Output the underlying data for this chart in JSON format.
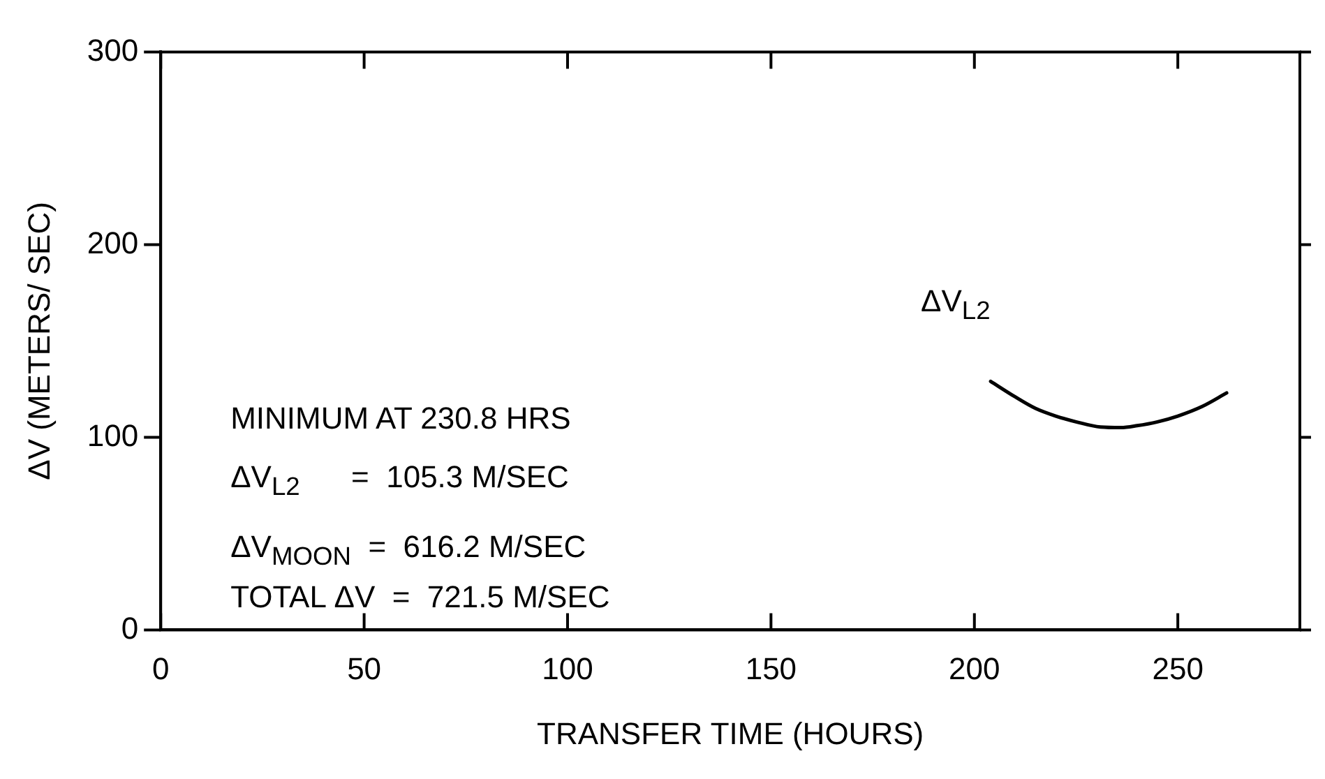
{
  "chart_data": {
    "type": "line",
    "xlabel": "TRANSFER TIME (HOURS)",
    "ylabel": "ΔV (METERS/ SEC)",
    "xlim": [
      0,
      280
    ],
    "xticks": [
      0,
      50,
      100,
      150,
      200,
      250
    ],
    "ylim": [
      0,
      300
    ],
    "yticks": [
      0,
      100,
      200,
      300
    ],
    "grid": false,
    "legend": false,
    "marker": "none",
    "line_style": "solid",
    "series": [
      {
        "name": "ΔV$_{L2}$",
        "color": "#000000",
        "x": [
          204,
          210,
          215,
          220,
          225,
          231,
          236,
          240,
          245,
          250,
          256,
          262
        ],
        "values": [
          129,
          121,
          115,
          111,
          108,
          105.3,
          105,
          106,
          108,
          111,
          116,
          123
        ]
      }
    ],
    "annotations": [
      "MINIMUM AT 230.8 HRS",
      "ΔV$_{L2}$      =  105.3 M/SEC",
      "ΔV$_{MOON}$  =  616.2 M/SEC",
      "TOTAL ΔV  =  721.5 M/SEC"
    ]
  }
}
